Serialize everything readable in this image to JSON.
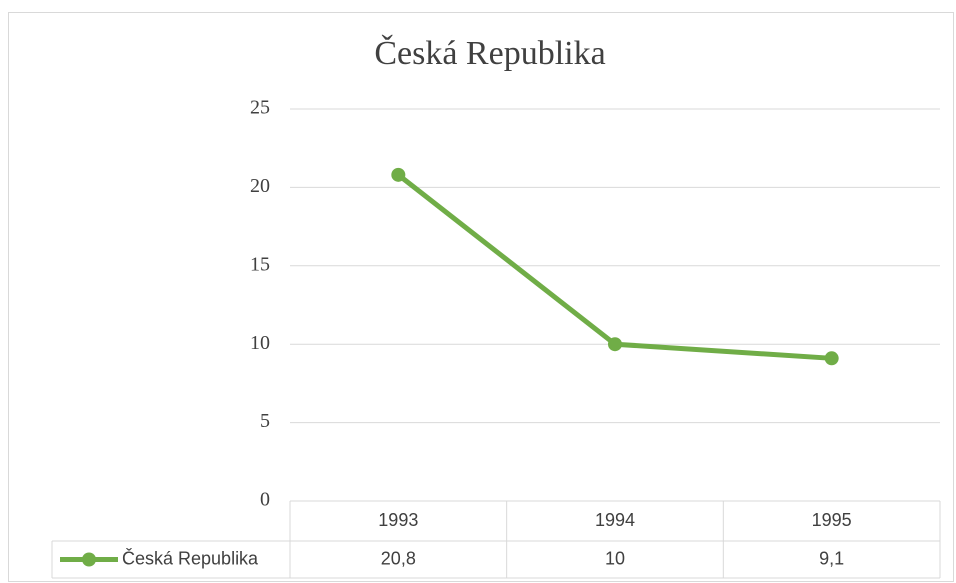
{
  "chart_data": {
    "type": "line",
    "title": "Česká Republika",
    "categories": [
      "1993",
      "1994",
      "1995"
    ],
    "series": [
      {
        "name": "Česká Republika",
        "color": "#70ad47",
        "values": [
          20.8,
          10,
          9.1
        ],
        "value_labels": [
          "20,8",
          "10",
          "9,1"
        ]
      }
    ],
    "ylim": [
      0,
      25
    ],
    "yticks": [
      0,
      5,
      10,
      15,
      20,
      25
    ],
    "grid": true,
    "data_table": true
  }
}
